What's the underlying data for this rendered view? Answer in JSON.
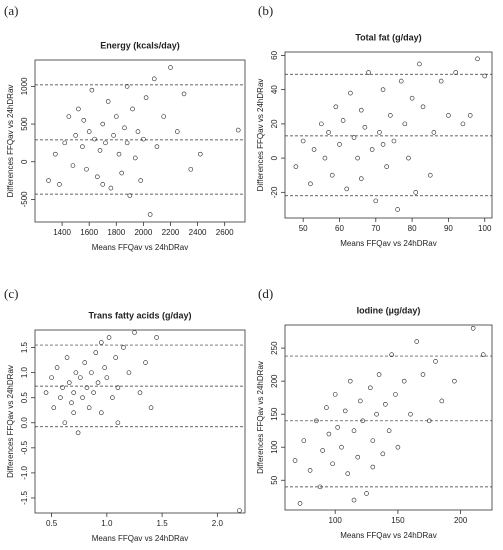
{
  "chart_data": [
    {
      "type": "scatter",
      "panel_label": "(a)",
      "title": "Energy (kcals/day)",
      "x_label": "Means FFQav vs 24hDRav",
      "y_label": "Differences FFQav vs 24hDRav",
      "xlim": [
        1200,
        2750
      ],
      "xticks": [
        1400,
        1600,
        1800,
        2000,
        2200,
        2400,
        2600
      ],
      "ylim": [
        -800,
        1350
      ],
      "yticks": [
        -500,
        0,
        500,
        1000
      ],
      "hlines": [
        1020,
        290,
        -430
      ],
      "x": [
        1300,
        1350,
        1380,
        1420,
        1450,
        1480,
        1500,
        1520,
        1550,
        1580,
        1600,
        1620,
        1640,
        1660,
        1680,
        1700,
        1720,
        1740,
        1760,
        1780,
        1800,
        1820,
        1840,
        1860,
        1880,
        1900,
        1920,
        1940,
        1960,
        1980,
        2000,
        2020,
        2050,
        2080,
        2100,
        2150,
        2200,
        2250,
        2300,
        2350,
        2420,
        2700,
        1560,
        1700,
        1880
      ],
      "values": [
        -250,
        100,
        -300,
        250,
        600,
        -50,
        350,
        700,
        200,
        -100,
        400,
        950,
        300,
        -200,
        150,
        500,
        250,
        800,
        -350,
        350,
        600,
        100,
        -150,
        450,
        250,
        -450,
        700,
        50,
        400,
        -250,
        300,
        850,
        -700,
        1100,
        200,
        600,
        1250,
        400,
        900,
        -100,
        100,
        420,
        550,
        -300,
        1000
      ]
    },
    {
      "type": "scatter",
      "panel_label": "(b)",
      "title": "Total fat (g/day)",
      "x_label": "Means FFQav vs 24hDRav",
      "y_label": "Differences FFQav vs 24hDRav",
      "xlim": [
        45,
        102
      ],
      "xticks": [
        50,
        60,
        70,
        80,
        90,
        100
      ],
      "ylim": [
        -35,
        62
      ],
      "yticks": [
        -20,
        0,
        20,
        40,
        60
      ],
      "hlines": [
        49,
        13,
        -22
      ],
      "x": [
        48,
        50,
        52,
        53,
        55,
        56,
        57,
        58,
        59,
        60,
        61,
        62,
        63,
        64,
        65,
        66,
        67,
        68,
        69,
        70,
        71,
        72,
        73,
        74,
        75,
        76,
        77,
        78,
        79,
        80,
        81,
        82,
        83,
        85,
        86,
        88,
        90,
        92,
        94,
        96,
        98,
        100,
        66,
        72
      ],
      "values": [
        -5,
        10,
        -15,
        5,
        20,
        0,
        15,
        -10,
        30,
        8,
        22,
        -18,
        38,
        12,
        0,
        28,
        18,
        50,
        5,
        -25,
        15,
        40,
        -5,
        25,
        10,
        -30,
        45,
        20,
        0,
        35,
        -20,
        55,
        30,
        -10,
        15,
        45,
        25,
        50,
        20,
        25,
        58,
        48,
        -12,
        8
      ]
    },
    {
      "type": "scatter",
      "panel_label": "(c)",
      "title": "Trans fatty acids (g/day)",
      "x_label": "Means FFQav vs 24hDRav",
      "y_label": "Differences FFQav vs 24hDRav",
      "xlim": [
        0.35,
        2.25
      ],
      "xticks": [
        0.5,
        {
          "value": 1,
          "label": "1.0"
        },
        1.5,
        {
          "value": 2,
          "label": "2.0"
        }
      ],
      "ylim": [
        -1.8,
        1.85
      ],
      "yticks": [
        -1.5,
        {
          "value": -1,
          "label": "-1.0"
        },
        -0.5,
        {
          "value": 0,
          "label": "0.0"
        },
        0.5,
        {
          "value": 1,
          "label": "1.0"
        },
        1.5
      ],
      "hlines": [
        1.55,
        0.73,
        -0.08
      ],
      "x": [
        0.45,
        0.5,
        0.52,
        0.55,
        0.58,
        0.6,
        0.62,
        0.64,
        0.66,
        0.68,
        0.7,
        0.72,
        0.74,
        0.76,
        0.78,
        0.8,
        0.82,
        0.84,
        0.86,
        0.88,
        0.9,
        0.92,
        0.95,
        0.98,
        1.0,
        1.02,
        1.05,
        1.08,
        1.1,
        1.15,
        1.2,
        1.25,
        1.3,
        1.35,
        1.4,
        1.45,
        1.1,
        0.7,
        2.2,
        0.95
      ],
      "values": [
        0.6,
        0.9,
        0.3,
        1.1,
        0.5,
        0.7,
        0.0,
        1.3,
        0.8,
        0.4,
        0.6,
        1.0,
        -0.2,
        0.9,
        0.5,
        1.2,
        0.7,
        0.3,
        1.0,
        0.6,
        1.4,
        0.8,
        0.2,
        1.1,
        0.9,
        1.7,
        0.5,
        1.3,
        0.7,
        1.5,
        1.0,
        1.8,
        0.6,
        1.2,
        0.3,
        1.7,
        0.0,
        0.2,
        -1.75,
        1.6
      ]
    },
    {
      "type": "scatter",
      "panel_label": "(d)",
      "title": "Iodine (µg/day)",
      "x_label": "Means FFQav vs 24hDRav",
      "y_label": "Differences FFQav vs 24hDRav",
      "xlim": [
        60,
        225
      ],
      "xticks": [
        100,
        150,
        200
      ],
      "ylim": [
        5,
        285
      ],
      "yticks": [
        50,
        100,
        150,
        200,
        250
      ],
      "hlines": [
        238,
        140,
        40
      ],
      "x": [
        68,
        72,
        75,
        80,
        85,
        88,
        90,
        93,
        95,
        98,
        100,
        102,
        105,
        108,
        110,
        112,
        115,
        118,
        120,
        122,
        125,
        128,
        130,
        133,
        135,
        138,
        140,
        143,
        145,
        148,
        150,
        155,
        160,
        165,
        170,
        175,
        180,
        185,
        195,
        210,
        218,
        115,
        130
      ],
      "values": [
        80,
        15,
        110,
        65,
        140,
        40,
        95,
        160,
        120,
        75,
        180,
        130,
        100,
        155,
        60,
        200,
        125,
        85,
        170,
        140,
        30,
        190,
        110,
        150,
        210,
        90,
        165,
        125,
        240,
        180,
        100,
        200,
        150,
        260,
        210,
        140,
        230,
        170,
        200,
        280,
        240,
        20,
        70
      ]
    }
  ]
}
